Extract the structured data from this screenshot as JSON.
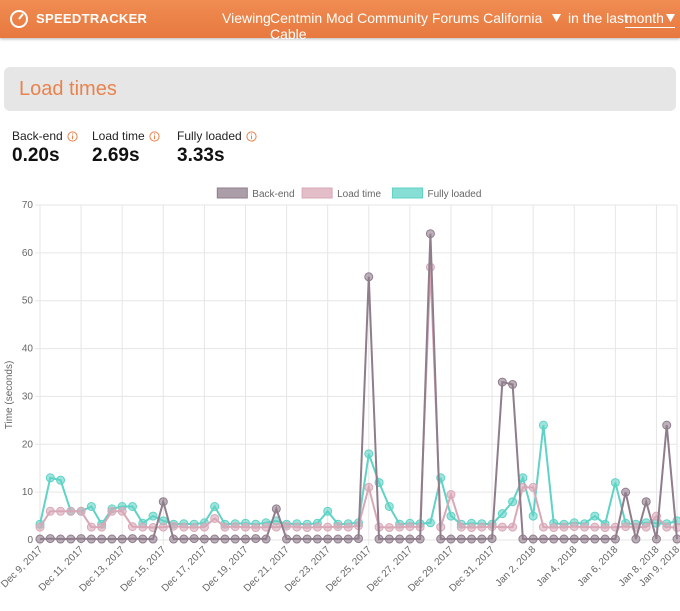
{
  "header": {
    "brand": "SPEEDTRACKER",
    "viewing": "Viewing",
    "site": "Centmin Mod Community Forums California Cable",
    "in_the_last": "in the last",
    "period": "month"
  },
  "section": {
    "title": "Load times"
  },
  "metrics": [
    {
      "label": "Back-end",
      "value": "0.20s"
    },
    {
      "label": "Load time",
      "value": "2.69s"
    },
    {
      "label": "Fully loaded",
      "value": "3.33s"
    }
  ],
  "chart_data": {
    "type": "line",
    "y_label": "Time (seconds)",
    "legend": "top",
    "grid": true,
    "x": [
      0,
      0.5,
      1,
      1.5,
      2,
      2.5,
      3,
      3.5,
      4,
      4.5,
      5,
      5.5,
      6,
      6.5,
      7,
      7.5,
      8,
      8.5,
      9,
      9.5,
      10,
      10.5,
      11,
      11.5,
      12,
      12.5,
      13,
      13.5,
      14,
      14.5,
      15,
      15.5,
      16,
      16.5,
      17,
      17.5,
      18,
      18.5,
      19,
      19.5,
      20,
      20.5,
      21,
      21.5,
      22,
      22.5,
      23,
      23.5,
      24,
      24.5,
      25,
      25.5,
      26,
      26.5,
      27,
      27.5,
      28,
      28.5,
      29,
      29.5,
      30,
      30.5,
      31
    ],
    "xlim": [
      0,
      31
    ],
    "xticks": [
      {
        "value": 0,
        "label": "Dec 9, 2017"
      },
      {
        "value": 2,
        "label": "Dec 11, 2017"
      },
      {
        "value": 4,
        "label": "Dec 13, 2017"
      },
      {
        "value": 6,
        "label": "Dec 15, 2017"
      },
      {
        "value": 8,
        "label": "Dec 17, 2017"
      },
      {
        "value": 10,
        "label": "Dec 19, 2017"
      },
      {
        "value": 12,
        "label": "Dec 21, 2017"
      },
      {
        "value": 14,
        "label": "Dec 23, 2017"
      },
      {
        "value": 16,
        "label": "Dec 25, 2017"
      },
      {
        "value": 18,
        "label": "Dec 27, 2017"
      },
      {
        "value": 20,
        "label": "Dec 29, 2017"
      },
      {
        "value": 22,
        "label": "Dec 31, 2017"
      },
      {
        "value": 24,
        "label": "Jan 2, 2018"
      },
      {
        "value": 26,
        "label": "Jan 4, 2018"
      },
      {
        "value": 28,
        "label": "Jan 6, 2018"
      },
      {
        "value": 30,
        "label": "Jan 8, 2018"
      },
      {
        "value": 31,
        "label": "Jan 9, 2018"
      }
    ],
    "ylim": [
      0,
      70
    ],
    "yticks": [
      0,
      10,
      20,
      30,
      40,
      50,
      60,
      70
    ],
    "series": [
      {
        "name": "Back-end",
        "color": "#8f7d8c",
        "values": [
          0.2,
          0.3,
          0.2,
          0.2,
          0.3,
          0.2,
          0.2,
          0.2,
          0.2,
          0.3,
          0.2,
          0.2,
          8,
          0.2,
          0.2,
          0.3,
          0.2,
          0.2,
          0.2,
          0.2,
          0.2,
          0.3,
          0.2,
          6.5,
          0.2,
          0.2,
          0.2,
          0.2,
          0.2,
          0.2,
          0.2,
          0.3,
          55,
          0.2,
          0.2,
          0.2,
          0.2,
          0.2,
          64,
          0.2,
          0.2,
          0.2,
          0.2,
          0.2,
          0.3,
          33,
          32.5,
          0.2,
          0.2,
          0.2,
          0.2,
          0.2,
          0.2,
          0.2,
          0.2,
          0.2,
          0.2,
          10,
          0.2,
          8,
          0.2,
          24,
          0.2
        ]
      },
      {
        "name": "Load time",
        "color": "#d9a8b7",
        "values": [
          2.7,
          6,
          6,
          6,
          6,
          2.7,
          2.7,
          6,
          6,
          2.8,
          2.7,
          2.6,
          2.7,
          2.9,
          2.7,
          2.6,
          2.7,
          4.5,
          2.7,
          2.8,
          2.7,
          2.6,
          2.7,
          2.7,
          2.9,
          2.7,
          2.6,
          2.7,
          2.7,
          2.8,
          2.7,
          3,
          11,
          2.7,
          2.6,
          2.7,
          2.8,
          2.7,
          57,
          2.7,
          9.5,
          2.7,
          2.6,
          2.7,
          2.8,
          2.7,
          2.7,
          11,
          11,
          2.7,
          2.6,
          2.7,
          2.8,
          2.7,
          2.7,
          2.6,
          2.7,
          2.8,
          2.7,
          2.7,
          5,
          2.7,
          2.6
        ]
      },
      {
        "name": "Fully loaded",
        "color": "#5fd3c6",
        "values": [
          3.3,
          13,
          12.5,
          6,
          6,
          7,
          3.3,
          6.5,
          7,
          7,
          3.5,
          5,
          4,
          3.3,
          3.4,
          3.3,
          3.6,
          7,
          3.3,
          3.4,
          3.5,
          3.3,
          3.6,
          4,
          3.3,
          3.4,
          3.3,
          3.5,
          6,
          3.3,
          3.4,
          3.6,
          18,
          12,
          7,
          3.3,
          3.5,
          3.4,
          3.6,
          13,
          5,
          3.3,
          3.5,
          3.4,
          3.3,
          5.5,
          8,
          13,
          5,
          24,
          3.5,
          3.3,
          3.6,
          3.4,
          5,
          3.3,
          12,
          3.5,
          3.3,
          3.6,
          3.5,
          3.4,
          4
        ]
      }
    ]
  }
}
